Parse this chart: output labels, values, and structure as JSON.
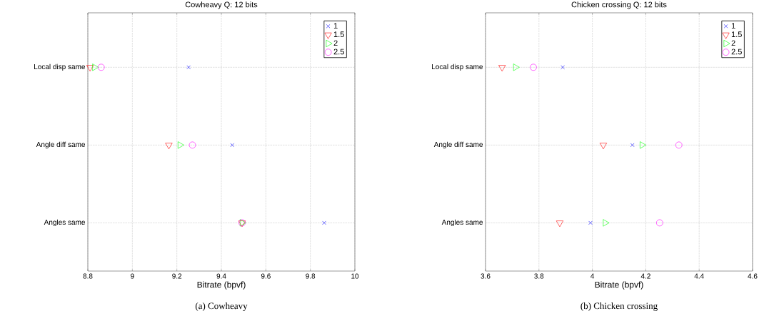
{
  "chart_data": [
    {
      "type": "scatter",
      "orientation": "horizontal",
      "title": "Cowheavy Q: 12 bits",
      "xlabel": "Bitrate (bpvf)",
      "categories": [
        "Local disp same",
        "Angle diff same",
        "Angles same"
      ],
      "xlim": [
        8.8,
        10
      ],
      "xticks": [
        8.8,
        9,
        9.2,
        9.4,
        9.6,
        9.8,
        10
      ],
      "grid": true,
      "legend": "top right",
      "annotations": [
        "(a)  Cowheavy"
      ],
      "series": [
        {
          "name": "1",
          "color": "#0000ff",
          "marker": "cross",
          "values": [
            9.253,
            9.449,
            9.862
          ]
        },
        {
          "name": "1.5",
          "color": "#ff0000",
          "marker": "triangle",
          "values": [
            8.81,
            9.164,
            9.493
          ]
        },
        {
          "name": "2",
          "color": "#00ff00",
          "marker": "triangle",
          "values": [
            8.83,
            9.214,
            9.493
          ]
        },
        {
          "name": "2.5",
          "color": "#ff00ff",
          "marker": "circle",
          "values": [
            8.86,
            9.27,
            9.493
          ]
        }
      ]
    },
    {
      "type": "scatter",
      "orientation": "horizontal",
      "title": "Chicken crossing Q: 12 bits",
      "xlabel": "Bitrate (bpvf)",
      "categories": [
        "Local disp same",
        "Angle diff same",
        "Angles same"
      ],
      "xlim": [
        3.6,
        4.6
      ],
      "xticks": [
        3.6,
        3.8,
        4,
        4.2,
        4.4,
        4.6
      ],
      "grid": true,
      "legend": "top right",
      "annotations": [
        "(b)  Chicken crossing"
      ],
      "series": [
        {
          "name": "1",
          "color": "#0000ff",
          "marker": "cross",
          "values": [
            3.889,
            4.15,
            3.993
          ]
        },
        {
          "name": "1.5",
          "color": "#ff0000",
          "marker": "triangle",
          "values": [
            3.662,
            4.041,
            3.878
          ]
        },
        {
          "name": "2",
          "color": "#00ff00",
          "marker": "triangle",
          "values": [
            3.712,
            4.186,
            4.048
          ]
        },
        {
          "name": "2.5",
          "color": "#ff00ff",
          "marker": "circle",
          "values": [
            3.779,
            4.324,
            4.252
          ]
        }
      ]
    }
  ]
}
